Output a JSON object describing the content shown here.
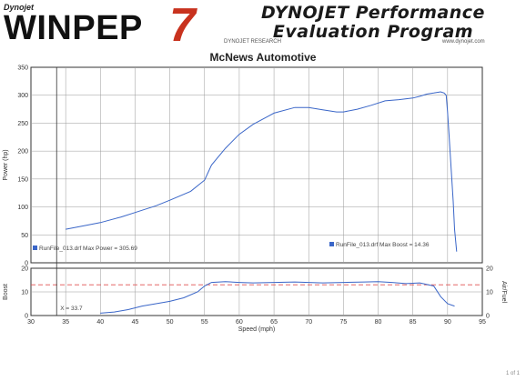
{
  "header": {
    "logo_small": "Dynojet",
    "logo_main": "WINPEP",
    "logo_version": "7",
    "brand_line1": "DYNOJET Performance",
    "brand_line2": "Evaluation Program",
    "research_label": "DYNOJET RESEARCH",
    "website": "www.dynojet.com",
    "company": "McNews Automotive"
  },
  "colors": {
    "curve": "#3a66c8",
    "reference_line": "#e05050",
    "logo_red": "#c8321e",
    "grid": "#9a9a9a",
    "axis": "#333333"
  },
  "chart_data": [
    {
      "type": "line",
      "title": "McNews Automotive",
      "xlabel": "Speed (mph)",
      "ylabel": "Power (hp)",
      "xlim": [
        30,
        95
      ],
      "ylim": [
        0,
        350
      ],
      "grid": true,
      "xticks": [
        30,
        35,
        40,
        45,
        50,
        55,
        60,
        65,
        70,
        75,
        80,
        85,
        90,
        95
      ],
      "yticks": [
        0,
        50,
        100,
        150,
        200,
        250,
        300,
        350
      ],
      "legend_entries": [
        "RunFile_013.drf Max Power = 305.69"
      ],
      "series": [
        {
          "x": [
            35,
            38,
            40,
            43,
            45,
            48,
            50,
            53,
            55,
            56,
            58,
            60,
            62,
            65,
            68,
            70,
            72,
            74,
            75,
            77,
            79,
            81,
            83,
            85,
            86,
            87,
            88,
            88.5,
            89,
            89.5,
            89.8,
            90,
            90.2,
            90.5,
            90.8,
            91,
            91.3
          ],
          "y": [
            60,
            67,
            72,
            82,
            90,
            102,
            112,
            128,
            148,
            175,
            205,
            230,
            248,
            268,
            278,
            278,
            274,
            270,
            270,
            275,
            282,
            290,
            292,
            295,
            298,
            302,
            304,
            305,
            306,
            304,
            300,
            270,
            230,
            170,
            110,
            60,
            20
          ]
        }
      ]
    },
    {
      "type": "line",
      "xlabel": "Speed (mph)",
      "ylabel": "Boost",
      "ylabel_right": "Air/Fuel",
      "xlim": [
        30,
        95
      ],
      "ylim": [
        0,
        20
      ],
      "ylim_right": [
        0,
        20
      ],
      "grid": true,
      "yticks": [
        0,
        10,
        20
      ],
      "yticks_right": [
        0,
        10,
        20
      ],
      "legend_entries": [
        "RunFile_013.drf Max Boost = 14.36"
      ],
      "reference_line": 13,
      "cursor_label": "X = 33.7",
      "cursor_x": 33.7,
      "series": [
        {
          "x": [
            40,
            42,
            44,
            46,
            48,
            50,
            52,
            54,
            55,
            56,
            58,
            60,
            62,
            65,
            68,
            70,
            72,
            75,
            78,
            80,
            82,
            84,
            86,
            88,
            89,
            90,
            91
          ],
          "y": [
            1,
            1.5,
            2.5,
            4,
            5,
            6,
            7.5,
            10,
            12.5,
            14,
            14.3,
            14,
            13.8,
            14,
            14.2,
            14,
            13.8,
            14,
            14.2,
            14.3,
            14,
            13.5,
            13.8,
            12.5,
            8,
            5,
            4
          ]
        }
      ]
    }
  ],
  "page_mark": "1 of 1"
}
